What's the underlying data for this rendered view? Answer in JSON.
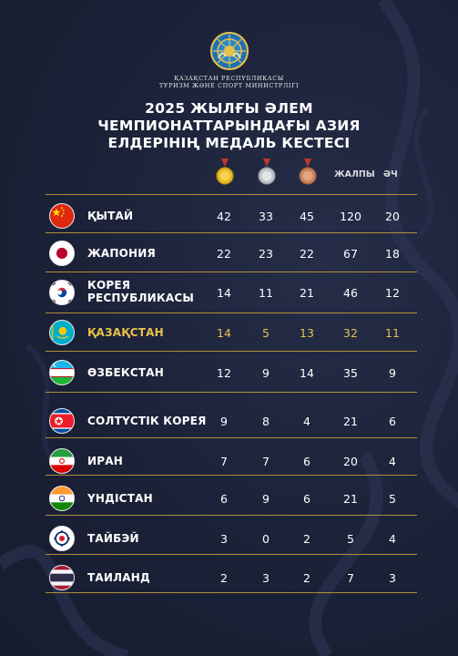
{
  "ministry_lines": [
    "ҚАЗАҚСТАН РЕСПУБЛИКАСЫ",
    "ТУРИЗМ ЖӘНЕ СПОРТ МИНИСТРЛІГІ"
  ],
  "title_lines": [
    "2025 ЖЫЛҒЫ ӘЛЕМ",
    "ЧЕМПИОНАТТАРЫНДАҒЫ АЗИЯ",
    "ЕЛДЕРІНІҢ МЕДАЛЬ КЕСТЕСІ"
  ],
  "columns": {
    "gold_icon": "gold-medal-icon",
    "silver_icon": "silver-medal-icon",
    "bronze_icon": "bronze-medal-icon",
    "total": "ЖАЛПЫ",
    "last": "ӘЧ"
  },
  "colors": {
    "background": "#1a2036",
    "accent": "#c9a23a",
    "highlight_text": "#e6c24a"
  },
  "rows": [
    {
      "flag_icon": "china-flag-icon",
      "name": [
        "ҚЫТАЙ"
      ],
      "gold": "42",
      "silver": "33",
      "bronze": "45",
      "total": "120",
      "last": "20"
    },
    {
      "flag_icon": "japan-flag-icon",
      "name": [
        "ЖАПОНИЯ"
      ],
      "gold": "22",
      "silver": "23",
      "bronze": "22",
      "total": "67",
      "last": "18"
    },
    {
      "flag_icon": "south-korea-flag-icon",
      "name": [
        "КОРЕЯ",
        "РЕСПУБЛИКАСЫ"
      ],
      "gold": "14",
      "silver": "11",
      "bronze": "21",
      "total": "46",
      "last": "12"
    },
    {
      "flag_icon": "kazakhstan-flag-icon",
      "name": [
        "ҚАЗАҚСТАН"
      ],
      "gold": "14",
      "silver": "5",
      "bronze": "13",
      "total": "32",
      "last": "11",
      "highlight": true
    },
    {
      "flag_icon": "uzbekistan-flag-icon",
      "name": [
        "ӨЗБЕКСТАН"
      ],
      "gold": "12",
      "silver": "9",
      "bronze": "14",
      "total": "35",
      "last": "9"
    },
    {
      "flag_icon": "north-korea-flag-icon",
      "name": [
        "СОЛТҮСТІК КОРЕЯ"
      ],
      "gold": "9",
      "silver": "8",
      "bronze": "4",
      "total": "21",
      "last": "6"
    },
    {
      "flag_icon": "iran-flag-icon",
      "name": [
        "ИРАН"
      ],
      "gold": "7",
      "silver": "7",
      "bronze": "6",
      "total": "20",
      "last": "4"
    },
    {
      "flag_icon": "india-flag-icon",
      "name": [
        "ҮНДІСТАН"
      ],
      "gold": "6",
      "silver": "9",
      "bronze": "6",
      "total": "21",
      "last": "5"
    },
    {
      "flag_icon": "chinese-taipei-flag-icon",
      "name": [
        "ТАЙБЭЙ"
      ],
      "gold": "3",
      "silver": "0",
      "bronze": "2",
      "total": "5",
      "last": "4"
    },
    {
      "flag_icon": "thailand-flag-icon",
      "name": [
        "ТАИЛАНД"
      ],
      "gold": "2",
      "silver": "3",
      "bronze": "2",
      "total": "7",
      "last": "3"
    }
  ]
}
